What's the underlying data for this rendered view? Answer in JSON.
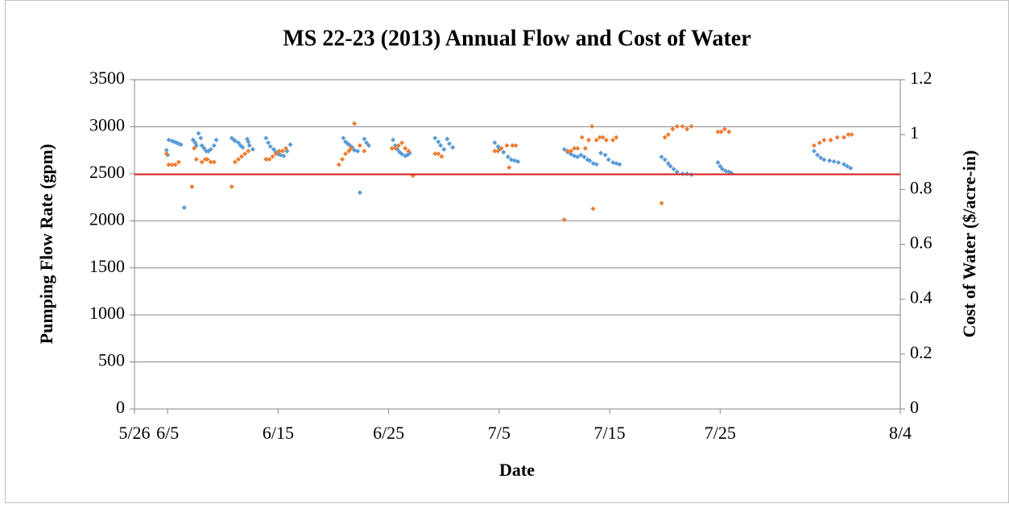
{
  "chart_data": {
    "type": "scatter",
    "title": "MS 22-23 (2013) Annual Flow and Cost of Water",
    "xlabel": "Date",
    "ylabel": "Pumping Flow Rate (gpm)",
    "y2label": "Cost of Water ($/acre-in)",
    "xlim": [
      153,
      222.3
    ],
    "xticks": [
      {
        "value": 153,
        "label": "5/26"
      },
      {
        "value": 156,
        "label": "6/5"
      },
      {
        "value": 166,
        "label": "6/15"
      },
      {
        "value": 176,
        "label": "6/25"
      },
      {
        "value": 186,
        "label": "7/5"
      },
      {
        "value": 196,
        "label": "7/15"
      },
      {
        "value": 206,
        "label": "7/25"
      },
      {
        "value": 222.3,
        "label": "8/4"
      }
    ],
    "ylim": [
      0,
      3500
    ],
    "yticks": [
      0,
      500,
      1000,
      1500,
      2000,
      2500,
      3000,
      3500
    ],
    "y2lim": [
      0,
      1.2
    ],
    "y2ticks": [
      0,
      0.2,
      0.4,
      0.6,
      0.8,
      1,
      1.2
    ],
    "grid": true,
    "reference_line": {
      "value": 0.855,
      "axis": "y2",
      "color": "#e02424"
    },
    "series": [
      {
        "color": "#5b9bd5",
        "x": [
          155.9,
          156.0,
          156.1,
          156.4,
          156.6,
          156.8,
          157.0,
          157.2,
          157.5,
          158.3,
          158.5,
          158.6,
          158.8,
          159.0,
          159.1,
          159.3,
          159.5,
          159.7,
          159.9,
          160.2,
          160.4,
          161.8,
          162.0,
          162.1,
          162.4,
          162.6,
          162.8,
          163.2,
          163.3,
          163.4,
          163.7,
          164.9,
          165.1,
          165.3,
          165.6,
          165.8,
          166.0,
          166.2,
          166.5,
          166.8,
          167.1,
          171.9,
          172.1,
          172.3,
          172.5,
          172.7,
          172.9,
          173.2,
          173.4,
          173.8,
          174.0,
          174.2,
          176.4,
          176.6,
          176.8,
          177.0,
          177.2,
          177.5,
          177.7,
          177.9,
          180.2,
          180.5,
          180.7,
          181.0,
          181.3,
          181.5,
          181.8,
          185.6,
          185.9,
          186.0,
          186.4,
          186.8,
          187.1,
          187.4,
          187.7,
          191.9,
          192.2,
          192.5,
          192.8,
          193.1,
          193.4,
          193.7,
          194.0,
          194.2,
          194.5,
          194.8,
          195.2,
          195.6,
          195.9,
          196.3,
          196.6,
          196.9,
          200.7,
          201.0,
          201.3,
          201.5,
          201.8,
          202.1,
          202.6,
          203.0,
          203.4,
          205.8,
          206.0,
          206.2,
          206.5,
          206.8,
          207.0,
          214.5,
          214.8,
          215.1,
          215.4,
          215.9,
          216.3,
          216.7,
          217.2,
          217.5,
          217.8
        ],
        "values": [
          2750,
          2700,
          2860,
          2850,
          2840,
          2830,
          2820,
          2810,
          2140,
          2860,
          2830,
          2800,
          2930,
          2880,
          2800,
          2770,
          2740,
          2740,
          2760,
          2800,
          2860,
          2880,
          2860,
          2850,
          2830,
          2800,
          2780,
          2870,
          2840,
          2800,
          2760,
          2880,
          2830,
          2790,
          2760,
          2730,
          2710,
          2700,
          2690,
          2740,
          2810,
          2880,
          2840,
          2820,
          2800,
          2780,
          2750,
          2740,
          2300,
          2870,
          2830,
          2800,
          2860,
          2800,
          2760,
          2730,
          2710,
          2690,
          2700,
          2720,
          2880,
          2840,
          2800,
          2760,
          2870,
          2820,
          2780,
          2830,
          2790,
          2760,
          2730,
          2680,
          2650,
          2640,
          2630,
          2760,
          2730,
          2710,
          2690,
          2680,
          2700,
          2680,
          2650,
          2640,
          2610,
          2600,
          2720,
          2700,
          2650,
          2620,
          2610,
          2600,
          2680,
          2650,
          2610,
          2580,
          2550,
          2520,
          2500,
          2500,
          2490,
          2620,
          2580,
          2550,
          2530,
          2520,
          2510,
          2740,
          2700,
          2670,
          2650,
          2640,
          2630,
          2620,
          2600,
          2580,
          2560
        ]
      },
      {
        "color": "#ed7d31",
        "axis": "y2",
        "x": [
          155.9,
          156.1,
          156.4,
          156.7,
          157.0,
          158.2,
          158.4,
          158.6,
          159.1,
          159.4,
          159.6,
          159.9,
          160.2,
          161.8,
          162.1,
          162.4,
          162.7,
          163.0,
          163.3,
          164.9,
          165.2,
          165.5,
          165.8,
          166.1,
          166.4,
          166.7,
          171.5,
          171.8,
          172.1,
          172.4,
          172.6,
          172.9,
          173.4,
          173.8,
          176.3,
          176.6,
          176.9,
          177.2,
          177.5,
          177.8,
          178.2,
          180.2,
          180.5,
          180.8,
          185.6,
          185.9,
          186.2,
          186.7,
          186.9,
          187.2,
          187.5,
          191.9,
          192.2,
          192.5,
          192.8,
          193.1,
          193.5,
          193.8,
          194.1,
          194.4,
          194.5,
          194.8,
          195.1,
          195.4,
          195.7,
          196.3,
          196.6,
          200.7,
          201.0,
          201.3,
          201.7,
          202.1,
          202.6,
          203.0,
          203.4,
          205.8,
          206.1,
          206.4,
          206.8,
          214.5,
          215.0,
          215.4,
          216.0,
          216.6,
          217.2,
          217.6,
          217.9
        ],
        "values": [
          0.93,
          0.89,
          0.89,
          0.89,
          0.9,
          0.81,
          0.95,
          0.91,
          0.9,
          0.91,
          0.91,
          0.9,
          0.9,
          0.81,
          0.9,
          0.91,
          0.92,
          0.93,
          0.94,
          0.91,
          0.91,
          0.92,
          0.93,
          0.94,
          0.94,
          0.95,
          0.89,
          0.91,
          0.93,
          0.94,
          0.95,
          1.04,
          0.96,
          0.94,
          0.95,
          0.95,
          0.96,
          0.97,
          0.95,
          0.94,
          0.85,
          0.93,
          0.93,
          0.92,
          0.94,
          0.94,
          0.95,
          0.96,
          0.88,
          0.96,
          0.96,
          0.69,
          0.94,
          0.94,
          0.95,
          0.95,
          0.99,
          0.95,
          0.98,
          1.03,
          0.73,
          0.98,
          0.99,
          0.99,
          0.98,
          0.98,
          0.99,
          0.75,
          0.99,
          1.0,
          1.02,
          1.03,
          1.03,
          1.02,
          1.03,
          1.01,
          1.01,
          1.02,
          1.01,
          0.96,
          0.97,
          0.98,
          0.98,
          0.99,
          0.99,
          1.0,
          1.0
        ]
      }
    ]
  }
}
